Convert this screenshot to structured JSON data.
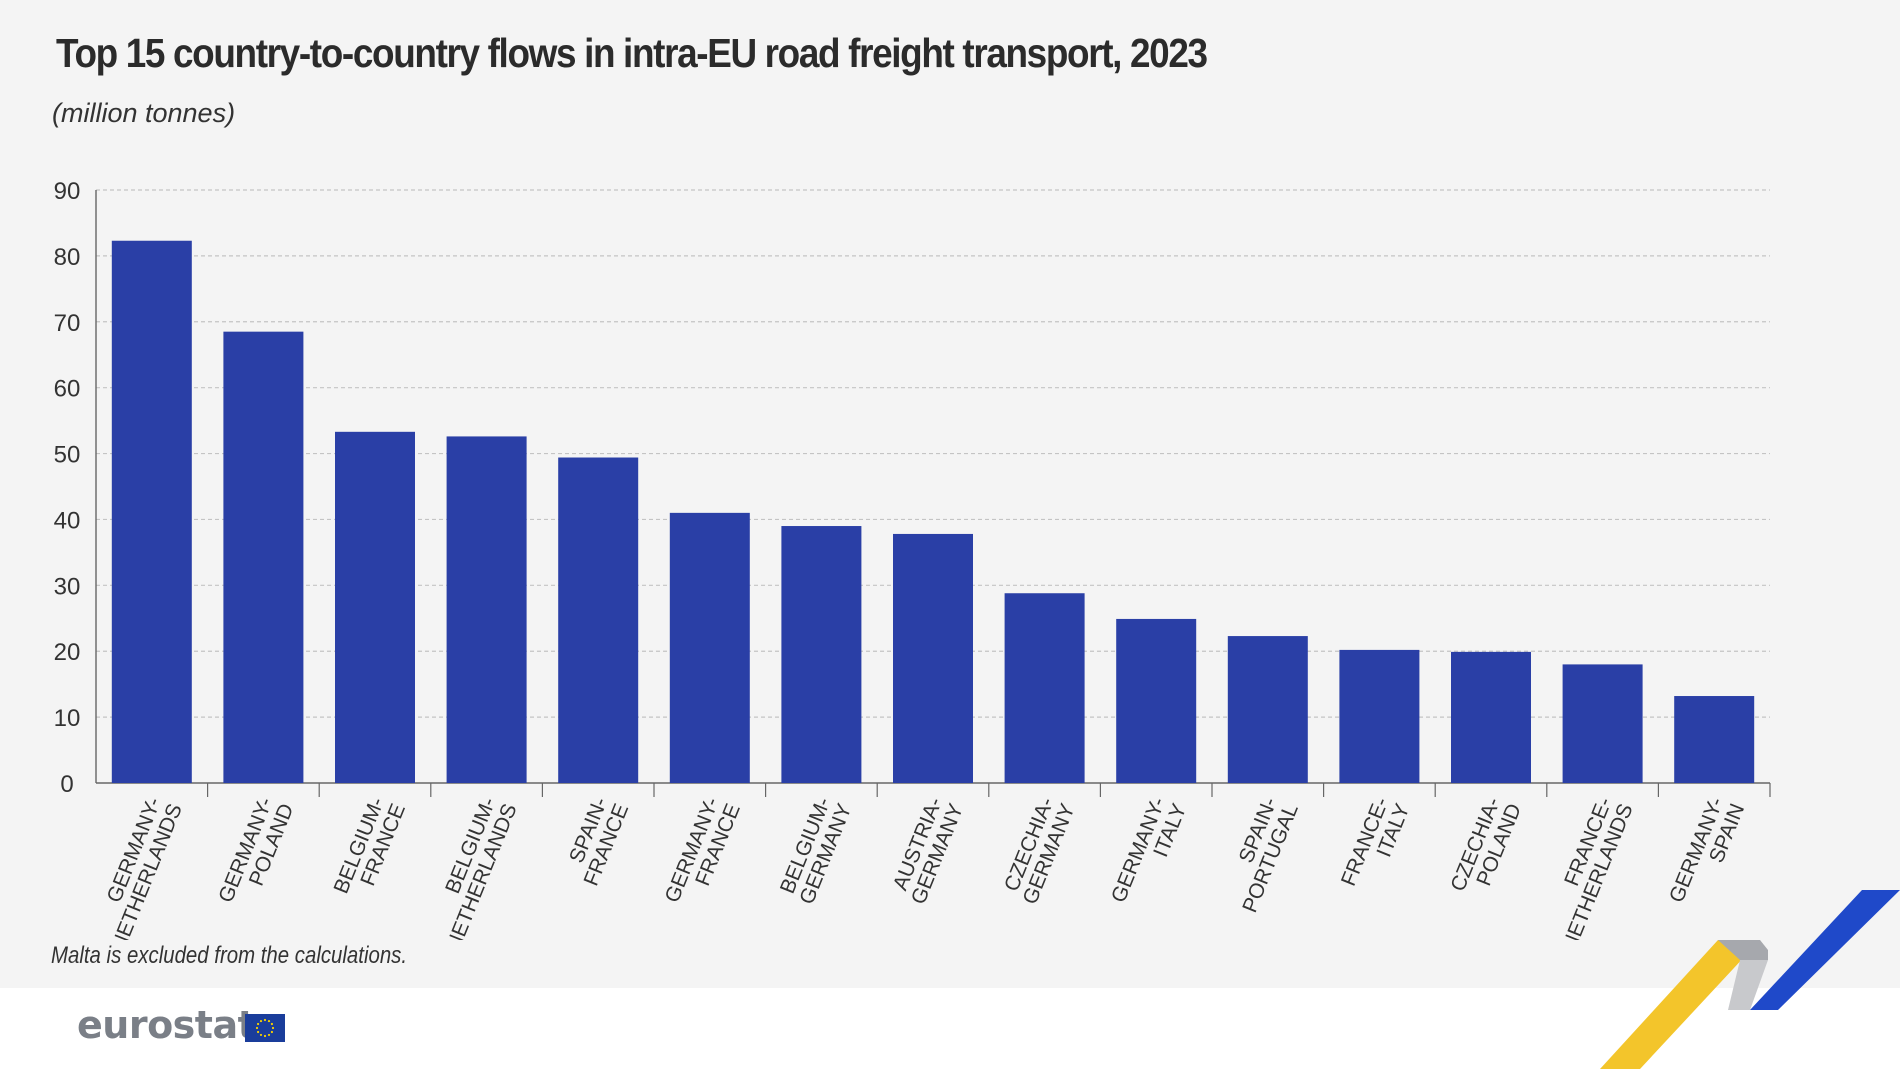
{
  "header": {
    "title": "Top 15 country-to-country flows in intra-EU road freight transport, 2023",
    "subtitle": "(million tonnes)"
  },
  "footnote": "Malta is excluded from the calculations.",
  "brand": {
    "logo_text": "eurostat",
    "colors": {
      "bar": "#2a3fa6",
      "flag_blue": "#1a3d9b",
      "flag_star": "#f5d000",
      "ribbon_blue": "#1f49c9",
      "ribbon_yellow": "#f3c52b",
      "ribbon_grey": "#9c9ea3"
    }
  },
  "chart_data": {
    "type": "bar",
    "title": "Top 15 country-to-country flows in intra-EU road freight transport, 2023",
    "ylabel": "(million tonnes)",
    "ylim": [
      0,
      90
    ],
    "yticks": [
      0,
      10,
      20,
      30,
      40,
      50,
      60,
      70,
      80,
      90
    ],
    "grid": true,
    "categories": [
      [
        "GERMANY-",
        "NETHERLANDS"
      ],
      [
        "GERMANY-",
        "POLAND"
      ],
      [
        "BELGIUM-",
        "FRANCE"
      ],
      [
        "BELGIUM-",
        "NETHERLANDS"
      ],
      [
        "SPAIN-",
        "FRANCE"
      ],
      [
        "GERMANY-",
        "FRANCE"
      ],
      [
        "BELGIUM-",
        "GERMANY"
      ],
      [
        "AUSTRIA-",
        "GERMANY"
      ],
      [
        "CZECHIA-",
        "GERMANY"
      ],
      [
        "GERMANY-",
        "ITALY"
      ],
      [
        "SPAIN-",
        "PORTUGAL"
      ],
      [
        "FRANCE-",
        "ITALY"
      ],
      [
        "CZECHIA-",
        "POLAND"
      ],
      [
        "FRANCE-",
        "NETHERLANDS"
      ],
      [
        "GERMANY-",
        "SPAIN"
      ]
    ],
    "values": [
      82.3,
      68.5,
      53.3,
      52.6,
      49.4,
      41.0,
      39.0,
      37.8,
      28.8,
      24.9,
      22.3,
      20.2,
      19.9,
      18.0,
      13.2
    ]
  }
}
